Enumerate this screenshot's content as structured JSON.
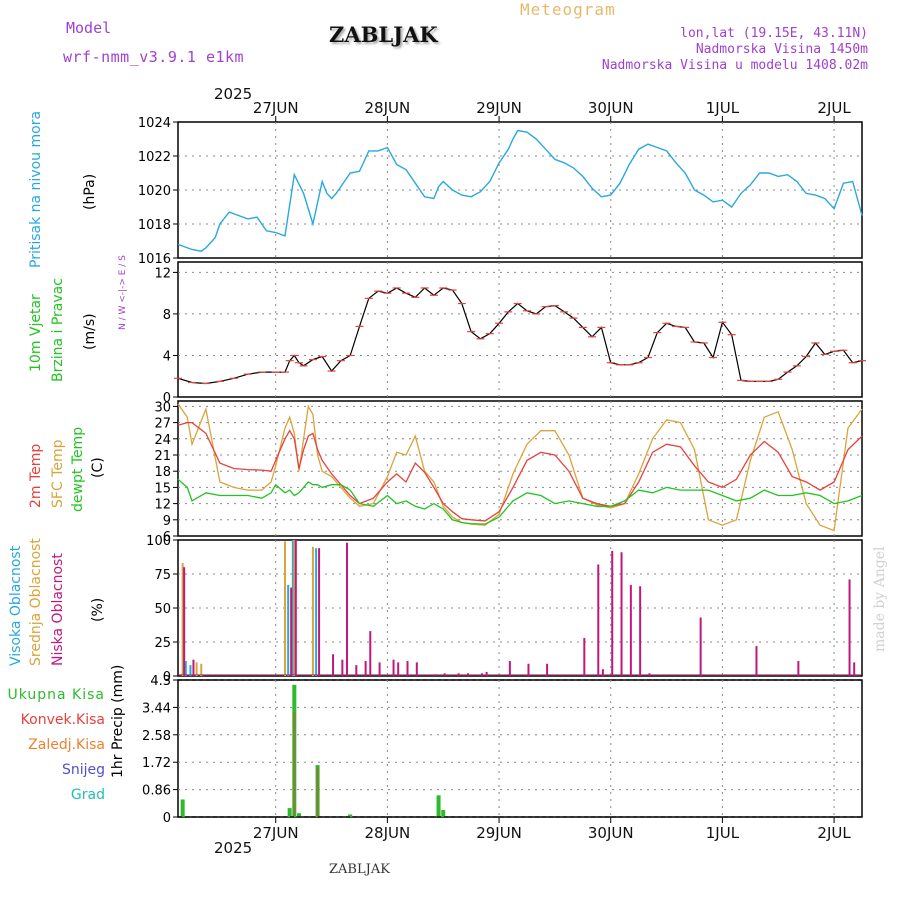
{
  "header": {
    "model_label": "Model",
    "model_name": "wrf-nmm_v3.9.1 e1km",
    "station": "ZABLJAK",
    "product": "Meteogram",
    "lonlat": "lon,lat (19.15E, 43.11N)",
    "altitude": "Nadmorska Visina 1450m",
    "model_altitude": "Nadmorska Visina u modelu 1408.02m",
    "footer_station": "ZABLJAK",
    "credit": "made by Angel"
  },
  "colors": {
    "pressure": "#29a8e0",
    "temp2m": "#e8413c",
    "sfc_temp": "#d9a43a",
    "dewpt": "#22c422",
    "high_cloud": "#29a8e0",
    "mid_cloud": "#d9a43a",
    "low_cloud": "#c0177e",
    "total_precip": "#2dbb2d",
    "conv_precip": "#e8413c",
    "frozen_precip": "#f08030",
    "snow": "#5050d0",
    "hail": "#20c0b0",
    "wind_label": "#22c422",
    "wind_direction": "#a040d0"
  },
  "time_axis": {
    "top_year": "2025",
    "bottom_year": "2025",
    "day_labels": [
      "27JUN",
      "28JUN",
      "29JUN",
      "30JUN",
      "1JUL",
      "2JUL"
    ],
    "start_hour_offset": -9,
    "end_hour_offset": 138
  },
  "chart_data": [
    {
      "type": "line",
      "id": "pressure",
      "ylabel_left": "Pritisak na nivou mora",
      "unit": "(hPa)",
      "ylim": [
        1016,
        1024
      ],
      "yticks": [
        "1016",
        "1018",
        "1020",
        "1022",
        "1024"
      ],
      "grid": true,
      "series": [
        {
          "values_time_hours": [
            -9,
            -6,
            -4,
            -3,
            -1,
            0,
            2,
            4,
            6,
            8,
            10,
            12,
            14,
            16,
            18,
            20,
            22,
            23,
            24,
            25,
            26,
            28,
            30,
            32,
            34,
            36,
            38,
            40,
            42,
            44,
            46,
            47,
            48,
            50,
            52,
            54,
            56,
            58,
            60,
            62,
            63,
            64,
            66,
            68,
            70,
            72,
            74,
            76,
            78,
            80,
            82,
            84,
            86,
            88,
            90,
            92,
            94,
            96,
            98,
            100,
            102,
            104,
            106,
            108,
            110,
            112,
            114,
            116,
            118,
            120,
            122,
            124,
            126,
            128,
            130,
            132,
            134,
            136,
            138
          ],
          "values": [
            1016.8,
            1016.5,
            1016.4,
            1016.6,
            1017.2,
            1018.0,
            1018.7,
            1018.5,
            1018.3,
            1018.4,
            1017.6,
            1017.5,
            1017.3,
            1020.9,
            1019.8,
            1018.0,
            1020.5,
            1019.8,
            1019.5,
            1019.8,
            1020.2,
            1021.0,
            1021.1,
            1022.3,
            1022.3,
            1022.5,
            1021.5,
            1021.2,
            1020.4,
            1019.6,
            1019.5,
            1020.2,
            1020.5,
            1020.0,
            1019.7,
            1019.6,
            1019.9,
            1020.5,
            1021.6,
            1022.4,
            1023.0,
            1023.5,
            1023.4,
            1023.0,
            1022.4,
            1021.8,
            1021.6,
            1021.3,
            1020.8,
            1020.1,
            1019.6,
            1019.7,
            1020.4,
            1021.5,
            1022.4,
            1022.7,
            1022.5,
            1022.3,
            1021.6,
            1021.0,
            1020.0,
            1019.7,
            1019.3,
            1019.4,
            1019.0,
            1019.8,
            1020.3,
            1021.0,
            1021.0,
            1020.8,
            1020.9,
            1020.5,
            1019.8,
            1019.7,
            1019.5,
            1018.9,
            1020.4,
            1020.5,
            1018.5
          ]
        }
      ]
    },
    {
      "type": "line",
      "id": "wind",
      "ylabel_left": "10m Vjetar",
      "ylabel_left2": "Brzina i Pravac",
      "unit": "(m/s)",
      "direction_legend": "N / W <-|-> E / S",
      "ylim": [
        0,
        13
      ],
      "yticks": [
        "0",
        "4",
        "8",
        "12"
      ],
      "grid": true,
      "series": [
        {
          "name": "speed",
          "values_time_hours": [
            -9,
            -6,
            -3,
            0,
            3,
            6,
            9,
            12,
            14,
            15,
            16,
            17,
            18,
            20,
            22,
            24,
            26,
            28,
            30,
            32,
            34,
            36,
            38,
            40,
            42,
            44,
            46,
            48,
            50,
            52,
            54,
            56,
            58,
            60,
            62,
            64,
            66,
            68,
            70,
            72,
            74,
            76,
            78,
            80,
            82,
            84,
            86,
            88,
            90,
            92,
            94,
            96,
            98,
            100,
            102,
            104,
            106,
            108,
            110,
            112,
            114,
            116,
            118,
            120,
            122,
            124,
            126,
            128,
            130,
            132,
            134,
            136,
            138
          ],
          "values": [
            1.8,
            1.4,
            1.3,
            1.5,
            1.8,
            2.2,
            2.4,
            2.4,
            2.4,
            3.5,
            4.0,
            3.3,
            3.0,
            3.6,
            3.9,
            2.5,
            3.5,
            4.0,
            6.8,
            9.5,
            10.2,
            10.0,
            10.5,
            10.0,
            9.6,
            10.5,
            9.8,
            10.5,
            10.3,
            9.0,
            6.3,
            5.6,
            6.1,
            7.1,
            8.2,
            9.0,
            8.3,
            8.0,
            8.7,
            8.8,
            8.2,
            7.6,
            6.7,
            5.8,
            6.7,
            3.3,
            3.1,
            3.1,
            3.3,
            3.8,
            6.2,
            7.1,
            6.8,
            6.7,
            5.3,
            5.2,
            3.8,
            7.2,
            6.0,
            1.6,
            1.5,
            1.5,
            1.5,
            1.7,
            2.4,
            3.0,
            3.9,
            5.2,
            4.1,
            4.4,
            4.5,
            3.3,
            3.5
          ]
        }
      ]
    },
    {
      "type": "line",
      "id": "temperature",
      "ylabel_left": "2m Temp",
      "ylabel_left2": "SFC Temp",
      "ylabel_left3": "dewpt Temp",
      "unit": "(C)",
      "ylim": [
        6,
        31
      ],
      "yticks": [
        "6",
        "9",
        "12",
        "15",
        "18",
        "21",
        "24",
        "27",
        "30"
      ],
      "grid": true,
      "time_hours": [
        -9,
        -7,
        -6,
        -3,
        0,
        3,
        6,
        9,
        11,
        12,
        14,
        15,
        16,
        17,
        18,
        19,
        20,
        21,
        22,
        24,
        26,
        28,
        30,
        33,
        36,
        38,
        40,
        42,
        44,
        46,
        48,
        50,
        52,
        54,
        57,
        60,
        63,
        66,
        69,
        72,
        75,
        78,
        81,
        84,
        87,
        90,
        93,
        96,
        99,
        102,
        105,
        108,
        111,
        114,
        117,
        120,
        123,
        126,
        129,
        132,
        135,
        138
      ],
      "series": [
        {
          "name": "2m Temp",
          "values": [
            26.5,
            27.0,
            27.0,
            25.0,
            19.5,
            18.5,
            18.3,
            18.2,
            18.0,
            20.0,
            24.0,
            25.5,
            24.0,
            18.5,
            22.0,
            24.5,
            25.0,
            22.0,
            20.0,
            17.5,
            15.5,
            13.5,
            12.0,
            13.0,
            16.0,
            17.5,
            16.0,
            19.5,
            17.8,
            15.0,
            12.0,
            10.5,
            9.2,
            9.0,
            8.8,
            10.5,
            15.0,
            20.0,
            21.5,
            21.0,
            18.0,
            13.0,
            12.0,
            11.5,
            12.0,
            16.0,
            21.5,
            23.0,
            22.5,
            19.0,
            16.0,
            15.0,
            16.5,
            21.0,
            23.5,
            21.5,
            17.0,
            16.0,
            14.5,
            16.0,
            22.0,
            24.5
          ]
        },
        {
          "name": "SFC Temp",
          "values": [
            30.5,
            28.0,
            23.0,
            29.5,
            16.0,
            15.0,
            14.5,
            14.5,
            16.0,
            19.0,
            26.0,
            28.0,
            25.0,
            18.0,
            24.0,
            30.0,
            28.5,
            21.0,
            18.0,
            17.0,
            15.0,
            13.0,
            11.5,
            12.0,
            17.0,
            21.5,
            21.0,
            24.5,
            18.0,
            16.0,
            11.5,
            9.5,
            8.5,
            8.2,
            8.0,
            10.0,
            17.5,
            23.0,
            25.5,
            25.5,
            21.0,
            13.0,
            11.8,
            11.2,
            12.0,
            17.5,
            24.0,
            27.5,
            27.0,
            22.0,
            9.0,
            8.0,
            9.0,
            20.0,
            28.0,
            29.0,
            22.0,
            12.0,
            8.0,
            7.0,
            26.0,
            29.5
          ]
        },
        {
          "name": "dewpt Temp",
          "values": [
            16.5,
            15.0,
            12.5,
            14.0,
            13.5,
            13.5,
            13.5,
            13.0,
            14.0,
            15.5,
            14.0,
            14.5,
            13.5,
            14.0,
            15.0,
            16.0,
            15.5,
            15.5,
            15.0,
            15.5,
            15.5,
            14.5,
            12.0,
            11.5,
            13.5,
            12.0,
            12.5,
            11.5,
            11.0,
            12.0,
            11.0,
            9.0,
            8.5,
            8.3,
            8.2,
            9.5,
            12.5,
            14.0,
            13.5,
            12.0,
            12.5,
            12.0,
            11.5,
            11.5,
            12.5,
            14.5,
            14.0,
            15.0,
            14.5,
            14.5,
            14.5,
            13.5,
            12.5,
            13.0,
            14.5,
            13.5,
            13.5,
            14.0,
            13.5,
            12.0,
            12.5,
            13.5
          ]
        }
      ]
    },
    {
      "type": "bar",
      "id": "clouds",
      "ylabel_left": "Visoka Oblacnost",
      "ylabel_left2": "Srednja Oblacnost",
      "ylabel_left3": "Niska Oblacnost",
      "unit": "(%)",
      "ylim": [
        0,
        100
      ],
      "yticks": [
        "0",
        "25",
        "50",
        "75",
        "100"
      ],
      "grid": true,
      "series": [
        {
          "name": "Visoka Oblacnost",
          "time_hours": [
            -7,
            -6,
            15,
            16,
            21
          ],
          "values": [
            11,
            8,
            67,
            100,
            94
          ]
        },
        {
          "name": "Srednja Oblacnost",
          "time_hours": [
            -8,
            -5,
            -4,
            14,
            16,
            20
          ],
          "values": [
            83,
            10,
            9,
            99,
            100,
            95
          ]
        },
        {
          "name": "Niska Oblacnost",
          "time_hours": [
            -8,
            -6,
            15,
            16,
            21,
            24,
            26,
            27,
            29,
            31,
            32,
            34,
            37,
            38,
            40,
            42,
            46,
            48,
            51,
            53,
            56,
            57,
            62,
            66,
            70,
            78,
            81,
            82,
            84,
            86,
            88,
            90,
            92,
            103,
            115,
            124,
            135,
            136
          ],
          "values": [
            80,
            12,
            65,
            100,
            94,
            16,
            12,
            98,
            8,
            11,
            33,
            10,
            12,
            10,
            11,
            10,
            1,
            2,
            2,
            2,
            2,
            3,
            11,
            9,
            9,
            28,
            82,
            5,
            92,
            91,
            67,
            66,
            2,
            43,
            22,
            11,
            71,
            10
          ]
        }
      ]
    },
    {
      "type": "bar",
      "id": "precip",
      "unit": "1hr Precip (mm)",
      "ylim": [
        0,
        4.3
      ],
      "yticks": [
        "0",
        "0.86",
        "1.72",
        "2.58",
        "3.44",
        "4.3"
      ],
      "grid": true,
      "legend": [
        "Ukupna Kisa",
        "Konvek.Kisa",
        "Zaledj.Kisa",
        "Snijeg",
        "Grad"
      ],
      "series": [
        {
          "name": "Ukupna Kisa",
          "time_hours": [
            -8,
            15,
            16,
            17,
            21,
            28,
            47,
            48
          ],
          "values": [
            0.55,
            0.28,
            4.15,
            0.12,
            1.63,
            0.08,
            0.68,
            0.22
          ]
        },
        {
          "name": "Konvek.Kisa",
          "time_hours": [
            16,
            21
          ],
          "values": [
            3.3,
            1.55
          ]
        }
      ]
    }
  ]
}
